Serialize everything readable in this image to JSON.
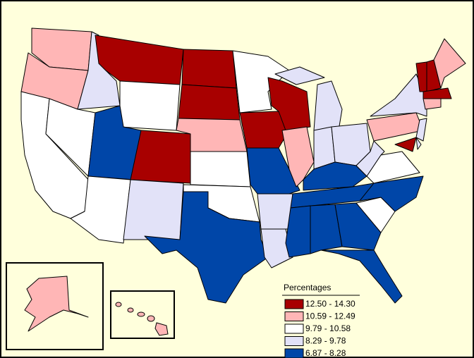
{
  "legend": {
    "title": "Percentages",
    "items": [
      {
        "label": "12.50 - 14.30",
        "color": "#a80000"
      },
      {
        "label": "10.59 - 12.49",
        "color": "#ffb6b6"
      },
      {
        "label": "9.79 - 10.58",
        "color": "#ffffff"
      },
      {
        "label": "8.29 - 9.78",
        "color": "#e2e2f8"
      },
      {
        "label": "6.87 - 8.28",
        "color": "#0046a8"
      }
    ]
  }
}
